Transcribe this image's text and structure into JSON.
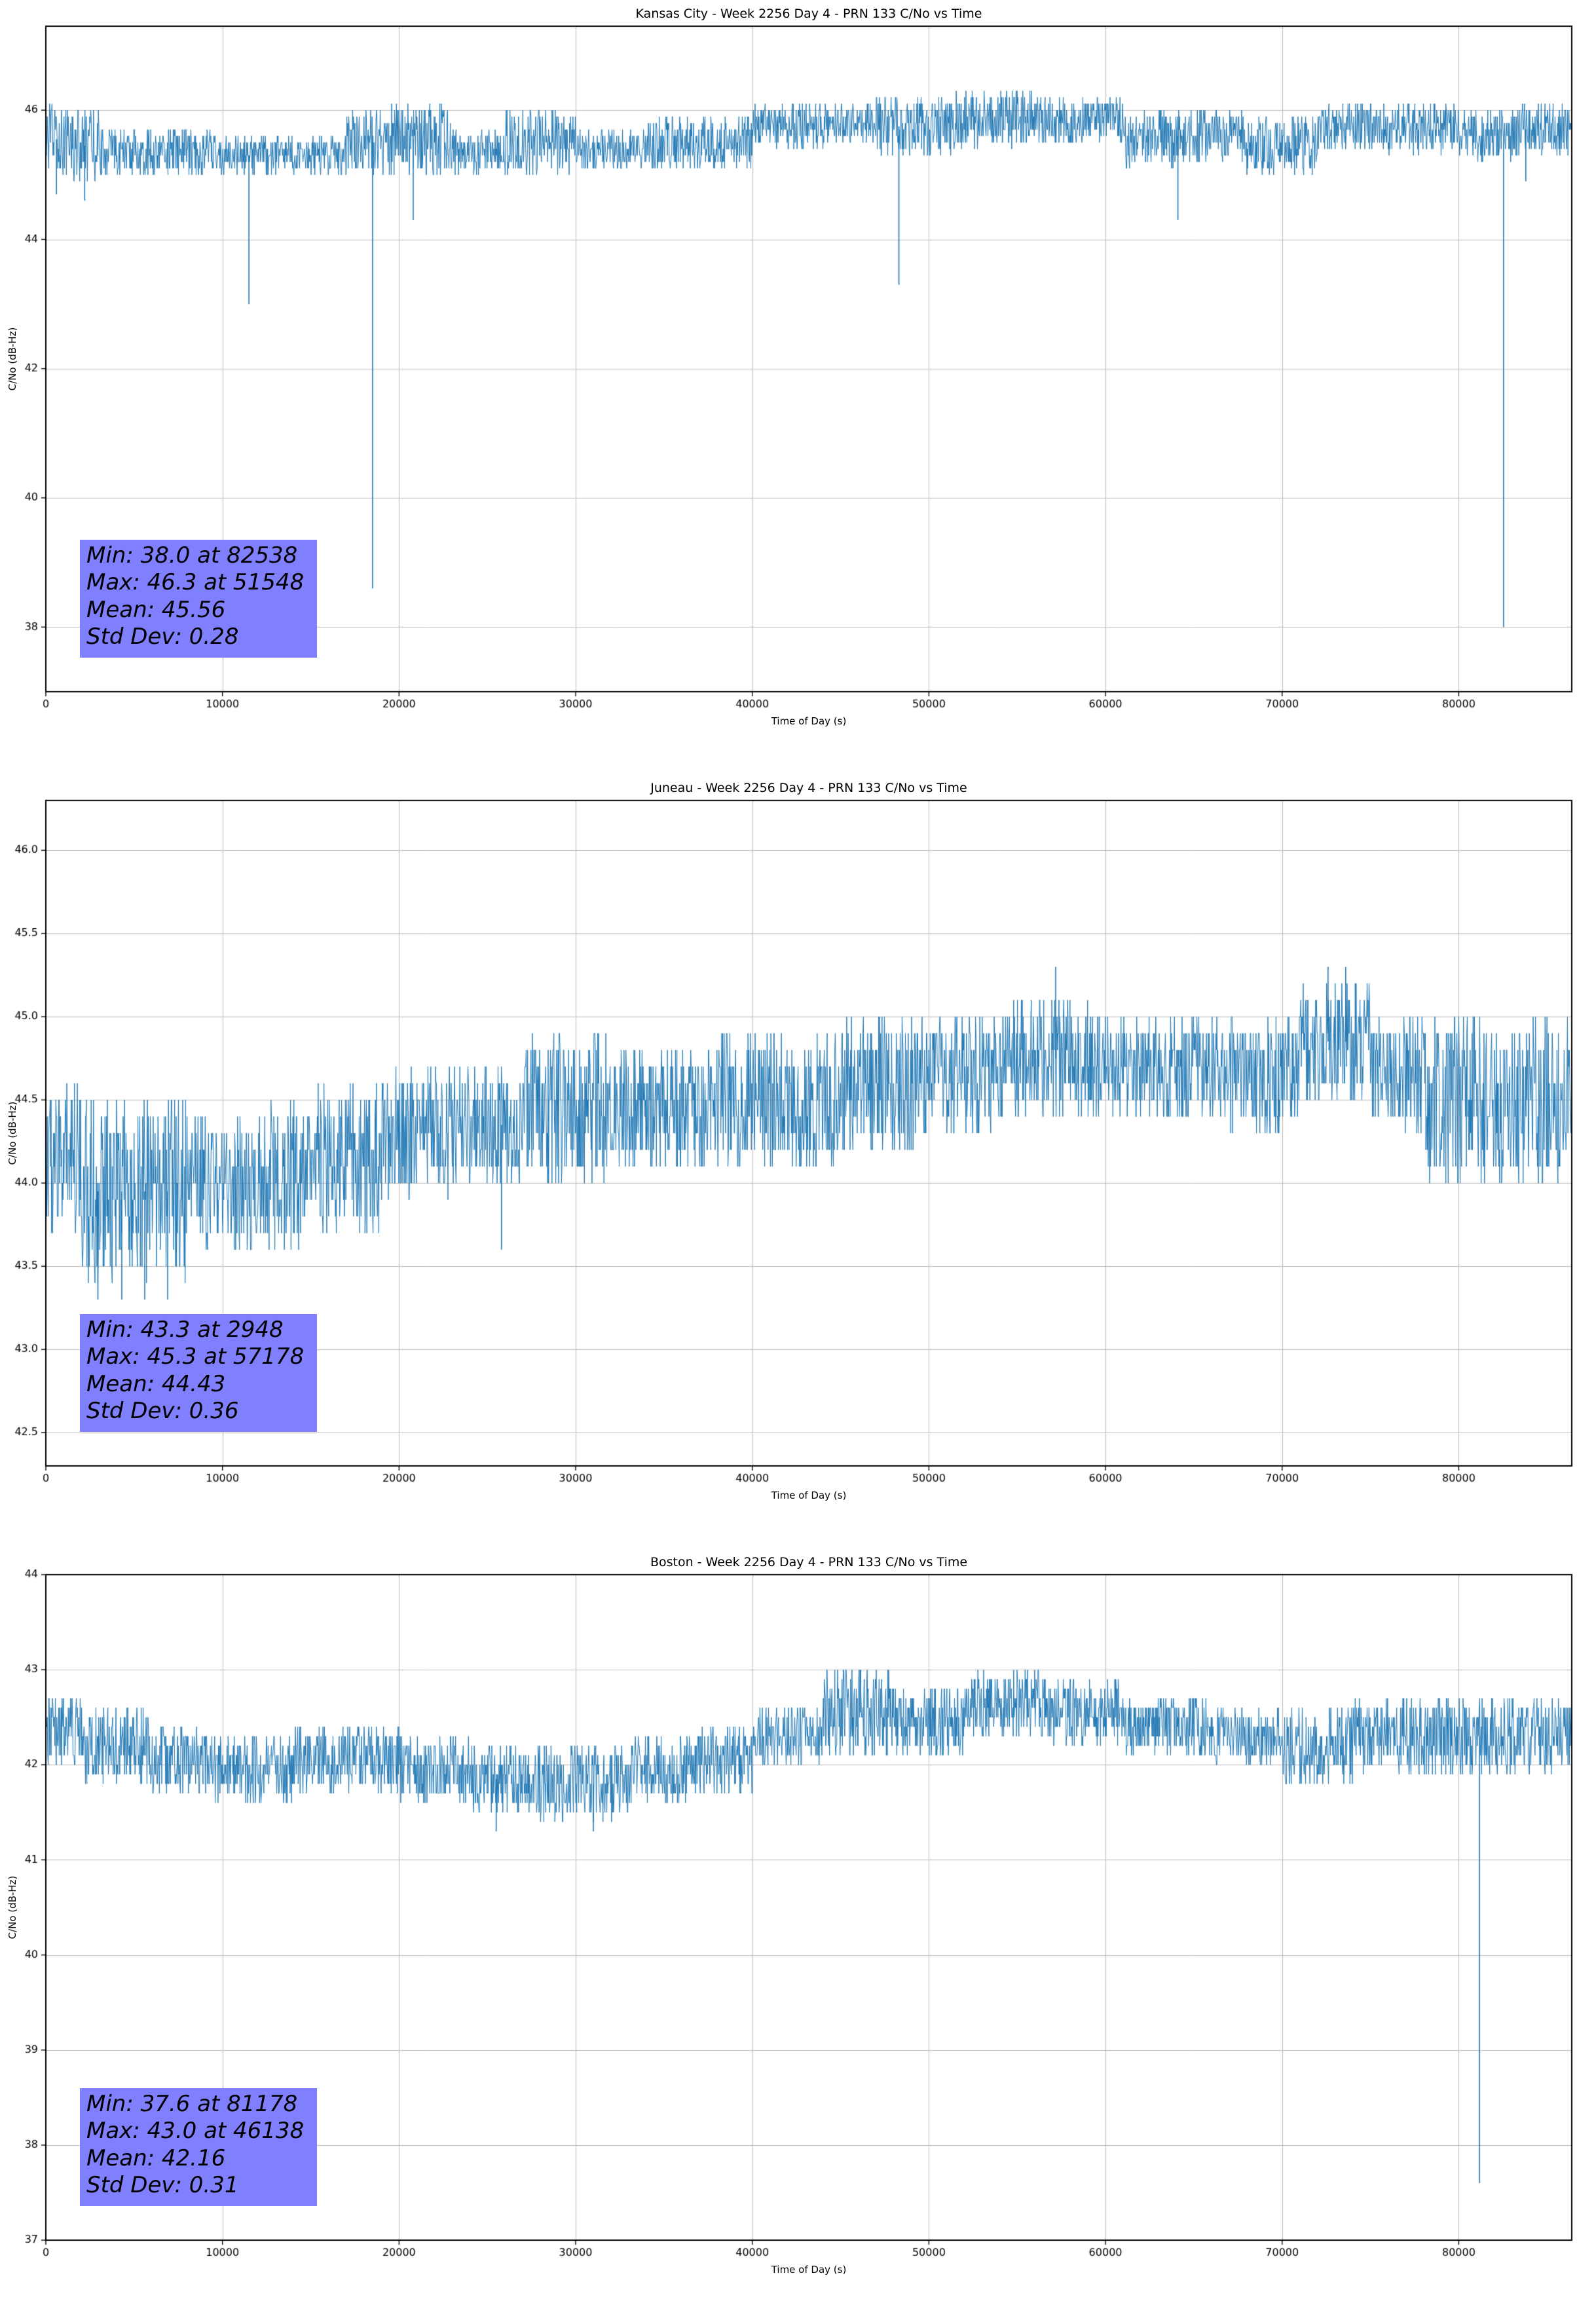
{
  "page": {
    "background": "#ffffff"
  },
  "chart_data": [
    {
      "type": "line",
      "title": "Kansas City - Week 2256 Day 4 - PRN 133 C/No vs Time",
      "xlabel": "Time of Day (s)",
      "ylabel": "C/No (dB-Hz)",
      "line_color": "#1f77b4",
      "stats_box_color": "#8080ff",
      "grid": true,
      "legend": false,
      "xlim": [
        0,
        86400
      ],
      "ylim": [
        37.0,
        47.3
      ],
      "xtick_values": [
        0,
        10000,
        20000,
        30000,
        40000,
        50000,
        60000,
        70000,
        80000
      ],
      "xtick_labels": [
        "0",
        "10000",
        "20000",
        "30000",
        "40000",
        "50000",
        "60000",
        "70000",
        "80000"
      ],
      "ytick_values": [
        38,
        40,
        42,
        44,
        46
      ],
      "ytick_labels": [
        "38",
        "40",
        "42",
        "44",
        "46"
      ],
      "stats": [
        "Min: 38.0 at 82538",
        "Max: 46.3 at 51548",
        "Mean: 45.56",
        "Std Dev: 0.28"
      ],
      "min": {
        "value": 38.0,
        "at": 82538
      },
      "max": {
        "value": 46.3,
        "at": 51548
      },
      "mean": 45.56,
      "std_dev": 0.28,
      "seed": 12345,
      "n_points": 3200,
      "quantize": 0.1,
      "envelope": [
        [
          0,
          1500,
          45.0,
          46.1
        ],
        [
          1500,
          3000,
          44.9,
          46.0
        ],
        [
          3000,
          10000,
          45.0,
          45.7
        ],
        [
          10000,
          17000,
          45.0,
          45.6
        ],
        [
          17000,
          19000,
          45.0,
          46.0
        ],
        [
          19000,
          23000,
          45.0,
          46.1
        ],
        [
          23000,
          26000,
          45.0,
          45.7
        ],
        [
          26000,
          30000,
          45.0,
          46.0
        ],
        [
          30000,
          34000,
          45.1,
          45.7
        ],
        [
          34000,
          40000,
          45.1,
          45.9
        ],
        [
          40000,
          44000,
          45.4,
          46.1
        ],
        [
          44000,
          47000,
          45.5,
          46.1
        ],
        [
          47000,
          52000,
          45.3,
          46.2
        ],
        [
          52000,
          56000,
          45.4,
          46.3
        ],
        [
          56000,
          61000,
          45.5,
          46.2
        ],
        [
          61000,
          64000,
          45.1,
          46.0
        ],
        [
          64000,
          68000,
          45.2,
          46.0
        ],
        [
          68000,
          72000,
          45.0,
          45.9
        ],
        [
          72000,
          76000,
          45.4,
          46.1
        ],
        [
          76000,
          80000,
          45.3,
          46.1
        ],
        [
          80000,
          83000,
          45.2,
          46.0
        ],
        [
          83000,
          86400,
          45.3,
          46.1
        ]
      ],
      "events": [
        [
          600,
          44.7
        ],
        [
          2200,
          44.6
        ],
        [
          11500,
          43.0
        ],
        [
          18500,
          38.6
        ],
        [
          20800,
          44.3
        ],
        [
          48300,
          43.3
        ],
        [
          51548,
          46.3
        ],
        [
          64100,
          44.3
        ],
        [
          82538,
          38.0
        ],
        [
          83800,
          44.9
        ]
      ]
    },
    {
      "type": "line",
      "title": "Juneau - Week 2256 Day 4 - PRN 133 C/No vs Time",
      "xlabel": "Time of Day (s)",
      "ylabel": "C/No (dB-Hz)",
      "line_color": "#1f77b4",
      "stats_box_color": "#8080ff",
      "grid": true,
      "legend": false,
      "xlim": [
        0,
        86400
      ],
      "ylim": [
        42.3,
        46.3
      ],
      "xtick_values": [
        0,
        10000,
        20000,
        30000,
        40000,
        50000,
        60000,
        70000,
        80000
      ],
      "xtick_labels": [
        "0",
        "10000",
        "20000",
        "30000",
        "40000",
        "50000",
        "60000",
        "70000",
        "80000"
      ],
      "ytick_values": [
        42.5,
        43.0,
        43.5,
        44.0,
        44.5,
        45.0,
        45.5,
        46.0
      ],
      "ytick_labels": [
        "42.5",
        "43.0",
        "43.5",
        "44.0",
        "44.5",
        "45.0",
        "45.5",
        "46.0"
      ],
      "stats": [
        "Min: 43.3 at 2948",
        "Max: 45.3 at 57178",
        "Mean: 44.43",
        "Std Dev: 0.36"
      ],
      "min": {
        "value": 43.3,
        "at": 2948
      },
      "max": {
        "value": 45.3,
        "at": 57178
      },
      "mean": 44.43,
      "std_dev": 0.36,
      "seed": 54321,
      "n_points": 3200,
      "quantize": 0.1,
      "envelope": [
        [
          0,
          2000,
          43.7,
          44.6
        ],
        [
          2000,
          8000,
          43.4,
          44.5
        ],
        [
          8000,
          12000,
          43.6,
          44.4
        ],
        [
          12000,
          15000,
          43.6,
          44.5
        ],
        [
          15000,
          19000,
          43.7,
          44.6
        ],
        [
          19000,
          23000,
          43.9,
          44.7
        ],
        [
          23000,
          27000,
          44.0,
          44.7
        ],
        [
          27000,
          32000,
          44.0,
          44.9
        ],
        [
          32000,
          38000,
          44.1,
          44.8
        ],
        [
          38000,
          45000,
          44.1,
          44.9
        ],
        [
          45000,
          50000,
          44.2,
          45.0
        ],
        [
          50000,
          54000,
          44.3,
          45.0
        ],
        [
          54000,
          59000,
          44.4,
          45.1
        ],
        [
          59000,
          63000,
          44.4,
          45.0
        ],
        [
          63000,
          67000,
          44.4,
          45.0
        ],
        [
          67000,
          71000,
          44.3,
          45.0
        ],
        [
          71000,
          75000,
          44.5,
          45.2
        ],
        [
          75000,
          78000,
          44.3,
          45.0
        ],
        [
          78000,
          86400,
          44.0,
          45.0
        ]
      ],
      "events": [
        [
          2948,
          43.3
        ],
        [
          4300,
          43.3
        ],
        [
          5600,
          43.3
        ],
        [
          6900,
          43.3
        ],
        [
          25800,
          43.6
        ],
        [
          57178,
          45.3
        ],
        [
          72600,
          45.3
        ],
        [
          73600,
          45.3
        ]
      ]
    },
    {
      "type": "line",
      "title": "Boston - Week 2256 Day 4 - PRN 133 C/No vs Time",
      "xlabel": "Time of Day (s)",
      "ylabel": "C/No (dB-Hz)",
      "line_color": "#1f77b4",
      "stats_box_color": "#8080ff",
      "grid": true,
      "legend": false,
      "xlim": [
        0,
        86400
      ],
      "ylim": [
        37.0,
        44.0
      ],
      "xtick_values": [
        0,
        10000,
        20000,
        30000,
        40000,
        50000,
        60000,
        70000,
        80000
      ],
      "xtick_labels": [
        "0",
        "10000",
        "20000",
        "30000",
        "40000",
        "50000",
        "60000",
        "70000",
        "80000"
      ],
      "ytick_values": [
        37,
        38,
        39,
        40,
        41,
        42,
        43,
        44
      ],
      "ytick_labels": [
        "37",
        "38",
        "39",
        "40",
        "41",
        "42",
        "43",
        "44"
      ],
      "stats": [
        "Min: 37.6 at 81178",
        "Max: 43.0 at 46138",
        "Mean: 42.16",
        "Std Dev: 0.31"
      ],
      "min": {
        "value": 37.6,
        "at": 81178
      },
      "max": {
        "value": 43.0,
        "at": 46138
      },
      "mean": 42.16,
      "std_dev": 0.31,
      "seed": 99999,
      "n_points": 3200,
      "quantize": 0.1,
      "envelope": [
        [
          0,
          2000,
          42.0,
          42.7
        ],
        [
          2000,
          6000,
          41.8,
          42.6
        ],
        [
          6000,
          9000,
          41.7,
          42.4
        ],
        [
          9000,
          14000,
          41.6,
          42.3
        ],
        [
          14000,
          20000,
          41.7,
          42.4
        ],
        [
          20000,
          24000,
          41.6,
          42.3
        ],
        [
          24000,
          28000,
          41.5,
          42.2
        ],
        [
          28000,
          33000,
          41.4,
          42.2
        ],
        [
          33000,
          37000,
          41.6,
          42.3
        ],
        [
          37000,
          40000,
          41.7,
          42.4
        ],
        [
          40000,
          44000,
          42.0,
          42.6
        ],
        [
          44000,
          48000,
          42.1,
          43.0
        ],
        [
          48000,
          52000,
          42.1,
          42.8
        ],
        [
          52000,
          57000,
          42.3,
          43.0
        ],
        [
          57000,
          61000,
          42.2,
          42.9
        ],
        [
          61000,
          66000,
          42.1,
          42.7
        ],
        [
          66000,
          70000,
          42.0,
          42.6
        ],
        [
          70000,
          74000,
          41.8,
          42.6
        ],
        [
          74000,
          78000,
          41.9,
          42.7
        ],
        [
          78000,
          86400,
          41.9,
          42.7
        ]
      ],
      "events": [
        [
          25500,
          41.3
        ],
        [
          31000,
          41.3
        ],
        [
          46138,
          43.0
        ],
        [
          81178,
          37.6
        ]
      ]
    }
  ]
}
